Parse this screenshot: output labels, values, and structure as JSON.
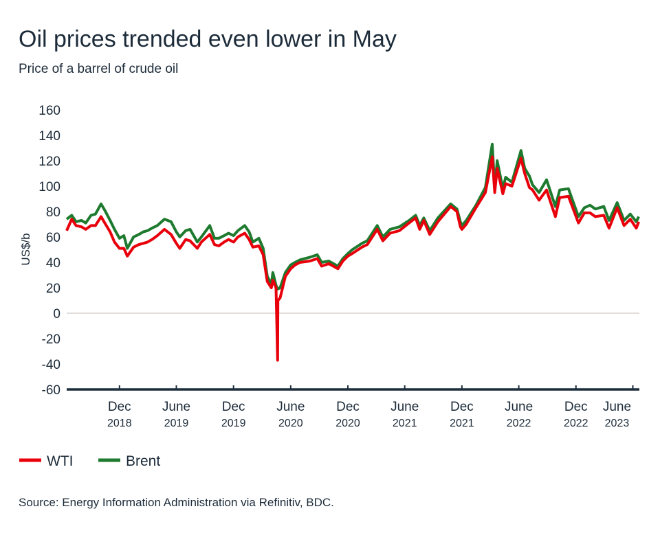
{
  "chart_data": {
    "type": "line",
    "title": "Oil prices trended even lower in May",
    "subtitle": "Price of a barrel of crude oil",
    "ylabel": "US$/b",
    "xlabel": "",
    "ylim": [
      -60,
      160
    ],
    "yticks": [
      "160",
      "140",
      "120",
      "100",
      "80",
      "60",
      "40",
      "20",
      "0",
      "-20",
      "-40",
      "-60"
    ],
    "xlim": [
      "2018-06-15",
      "2023-06-22"
    ],
    "xticks": [
      {
        "date": "2018-12-01",
        "line1": "Dec",
        "line2": "2018"
      },
      {
        "date": "2019-06-01",
        "line1": "June",
        "line2": "2019"
      },
      {
        "date": "2019-12-01",
        "line1": "Dec",
        "line2": "2019"
      },
      {
        "date": "2020-06-01",
        "line1": "June",
        "line2": "2020"
      },
      {
        "date": "2020-12-01",
        "line1": "Dec",
        "line2": "2020"
      },
      {
        "date": "2021-06-01",
        "line1": "June",
        "line2": "2021"
      },
      {
        "date": "2021-12-01",
        "line1": "Dec",
        "line2": "2021"
      },
      {
        "date": "2022-06-01",
        "line1": "June",
        "line2": "2022"
      },
      {
        "date": "2022-12-01",
        "line1": "Dec",
        "line2": "2022"
      },
      {
        "date": "2023-06-01",
        "line1": "June",
        "line2": "2023"
      }
    ],
    "grid": false,
    "zero_line": true,
    "legend_placement": "bottom-left",
    "dates": [
      "2018-06-15",
      "2018-07-01",
      "2018-07-15",
      "2018-08-01",
      "2018-08-15",
      "2018-09-01",
      "2018-09-15",
      "2018-10-03",
      "2018-10-15",
      "2018-11-01",
      "2018-11-15",
      "2018-12-01",
      "2018-12-15",
      "2018-12-26",
      "2019-01-15",
      "2019-02-01",
      "2019-02-15",
      "2019-03-01",
      "2019-03-15",
      "2019-04-01",
      "2019-04-24",
      "2019-05-15",
      "2019-06-01",
      "2019-06-12",
      "2019-07-01",
      "2019-07-15",
      "2019-08-07",
      "2019-08-20",
      "2019-09-16",
      "2019-10-01",
      "2019-10-15",
      "2019-11-01",
      "2019-11-15",
      "2019-12-01",
      "2019-12-15",
      "2020-01-06",
      "2020-01-20",
      "2020-02-01",
      "2020-02-20",
      "2020-03-05",
      "2020-03-18",
      "2020-03-31",
      "2020-04-05",
      "2020-04-15",
      "2020-04-20",
      "2020-04-21",
      "2020-04-28",
      "2020-05-15",
      "2020-06-01",
      "2020-06-15",
      "2020-07-01",
      "2020-08-01",
      "2020-08-25",
      "2020-09-08",
      "2020-10-01",
      "2020-10-30",
      "2020-11-15",
      "2020-12-01",
      "2020-12-15",
      "2021-01-15",
      "2021-02-01",
      "2021-03-05",
      "2021-03-23",
      "2021-04-15",
      "2021-05-15",
      "2021-06-15",
      "2021-07-06",
      "2021-07-19",
      "2021-08-01",
      "2021-08-20",
      "2021-09-15",
      "2021-10-26",
      "2021-11-15",
      "2021-11-26",
      "2021-12-01",
      "2021-12-15",
      "2022-01-15",
      "2022-02-14",
      "2022-03-08",
      "2022-03-16",
      "2022-03-24",
      "2022-04-11",
      "2022-04-20",
      "2022-05-10",
      "2022-06-08",
      "2022-06-20",
      "2022-07-05",
      "2022-07-15",
      "2022-08-05",
      "2022-08-29",
      "2022-09-26",
      "2022-10-10",
      "2022-11-07",
      "2022-12-09",
      "2022-12-28",
      "2023-01-15",
      "2023-02-01",
      "2023-02-28",
      "2023-03-17",
      "2023-04-12",
      "2023-05-04",
      "2023-05-24",
      "2023-06-12",
      "2023-06-20"
    ],
    "series": [
      {
        "name": "WTI",
        "color": "#e8000b",
        "values": [
          65,
          74,
          69,
          68,
          66,
          69,
          69,
          76,
          71,
          64,
          56,
          51,
          51,
          45,
          52,
          54,
          55,
          56,
          58,
          61,
          66,
          62,
          55,
          51,
          58,
          57,
          51,
          56,
          62,
          54,
          53,
          56,
          58,
          56,
          60,
          63,
          58,
          52,
          53,
          46,
          25,
          20,
          26,
          20,
          -37,
          10,
          12,
          29,
          35,
          38,
          40,
          41,
          43,
          37,
          39,
          35,
          41,
          45,
          47,
          52,
          54,
          66,
          57,
          63,
          65,
          71,
          75,
          66,
          73,
          62,
          72,
          84,
          80,
          68,
          66,
          70,
          83,
          95,
          123,
          95,
          114,
          94,
          102,
          100,
          122,
          110,
          99,
          97,
          89,
          97,
          76,
          91,
          92,
          71,
          79,
          79,
          76,
          77,
          67,
          83,
          69,
          74,
          67,
          72
        ]
      },
      {
        "name": "Brent",
        "color": "#1e7a2e",
        "values": [
          74,
          77,
          72,
          73,
          71,
          77,
          78,
          86,
          81,
          73,
          66,
          59,
          61,
          51,
          60,
          62,
          64,
          65,
          67,
          69,
          74,
          72,
          64,
          60,
          65,
          66,
          56,
          60,
          69,
          59,
          59,
          61,
          63,
          61,
          65,
          69,
          64,
          56,
          59,
          51,
          29,
          23,
          32,
          22,
          19,
          19,
          20,
          32,
          38,
          40,
          42,
          44,
          46,
          40,
          41,
          37,
          43,
          47,
          50,
          55,
          57,
          69,
          60,
          66,
          68,
          73,
          77,
          69,
          75,
          65,
          75,
          86,
          82,
          72,
          69,
          73,
          85,
          99,
          133,
          98,
          120,
          98,
          107,
          103,
          128,
          114,
          108,
          101,
          95,
          105,
          84,
          97,
          98,
          76,
          83,
          85,
          82,
          84,
          73,
          87,
          73,
          78,
          72,
          76
        ]
      }
    ]
  },
  "source": "Source: Energy Information Administration via Refinitiv, BDC."
}
